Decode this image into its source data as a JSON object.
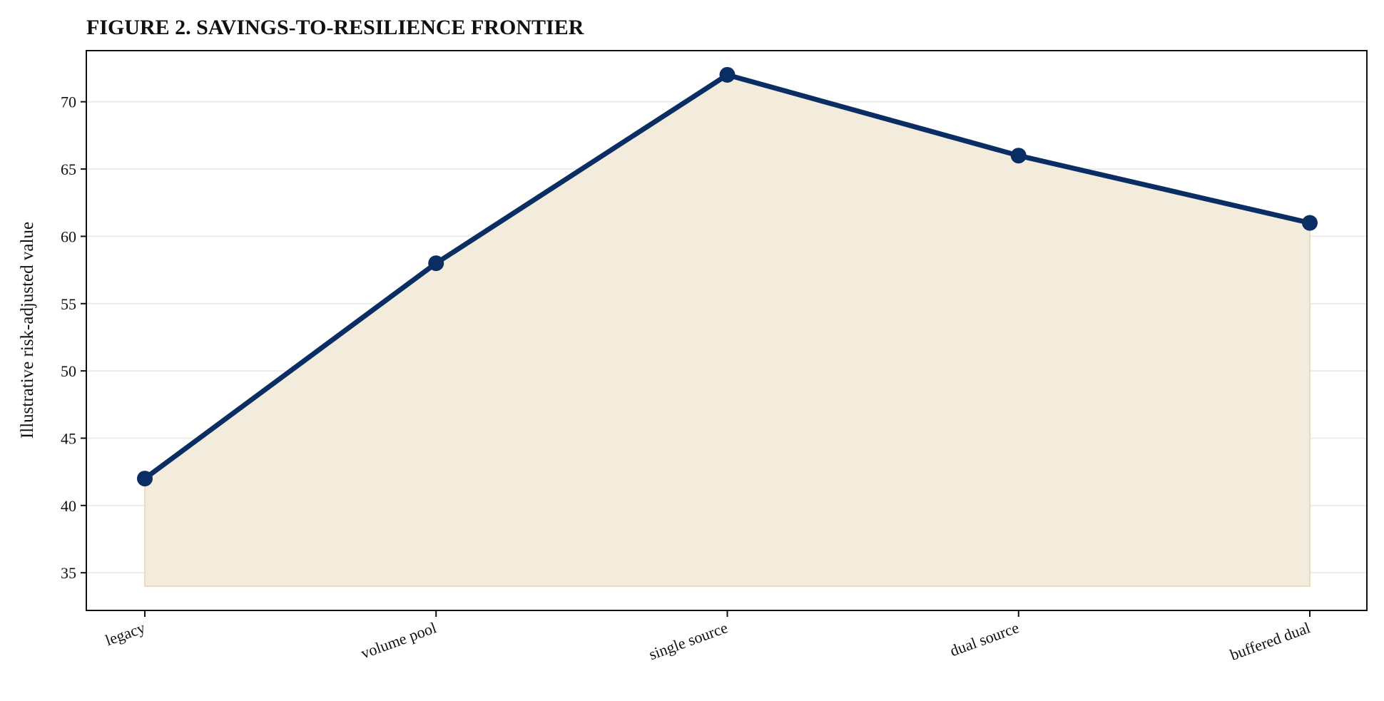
{
  "chart_data": {
    "type": "area",
    "title": "FIGURE 2. SAVINGS-TO-RESILIENCE FRONTIER",
    "xlabel": "",
    "ylabel": "Illustrative risk-adjusted value",
    "categories": [
      "legacy",
      "volume pool",
      "single source",
      "dual source",
      "buffered dual"
    ],
    "series": [
      {
        "values": [
          42,
          58,
          72,
          66,
          61
        ]
      }
    ],
    "fill_baseline": 34,
    "ylim": [
      32.2,
      73.8
    ],
    "yticks": [
      35,
      40,
      45,
      50,
      55,
      60,
      65,
      70
    ],
    "grid": "horizontal",
    "legend": "none",
    "colors": {
      "line": "#0a2d63",
      "fill": "#f3ecdd",
      "fill_edge": "#e9dcc0",
      "grid": "#ececec",
      "axis": "#111111"
    }
  }
}
